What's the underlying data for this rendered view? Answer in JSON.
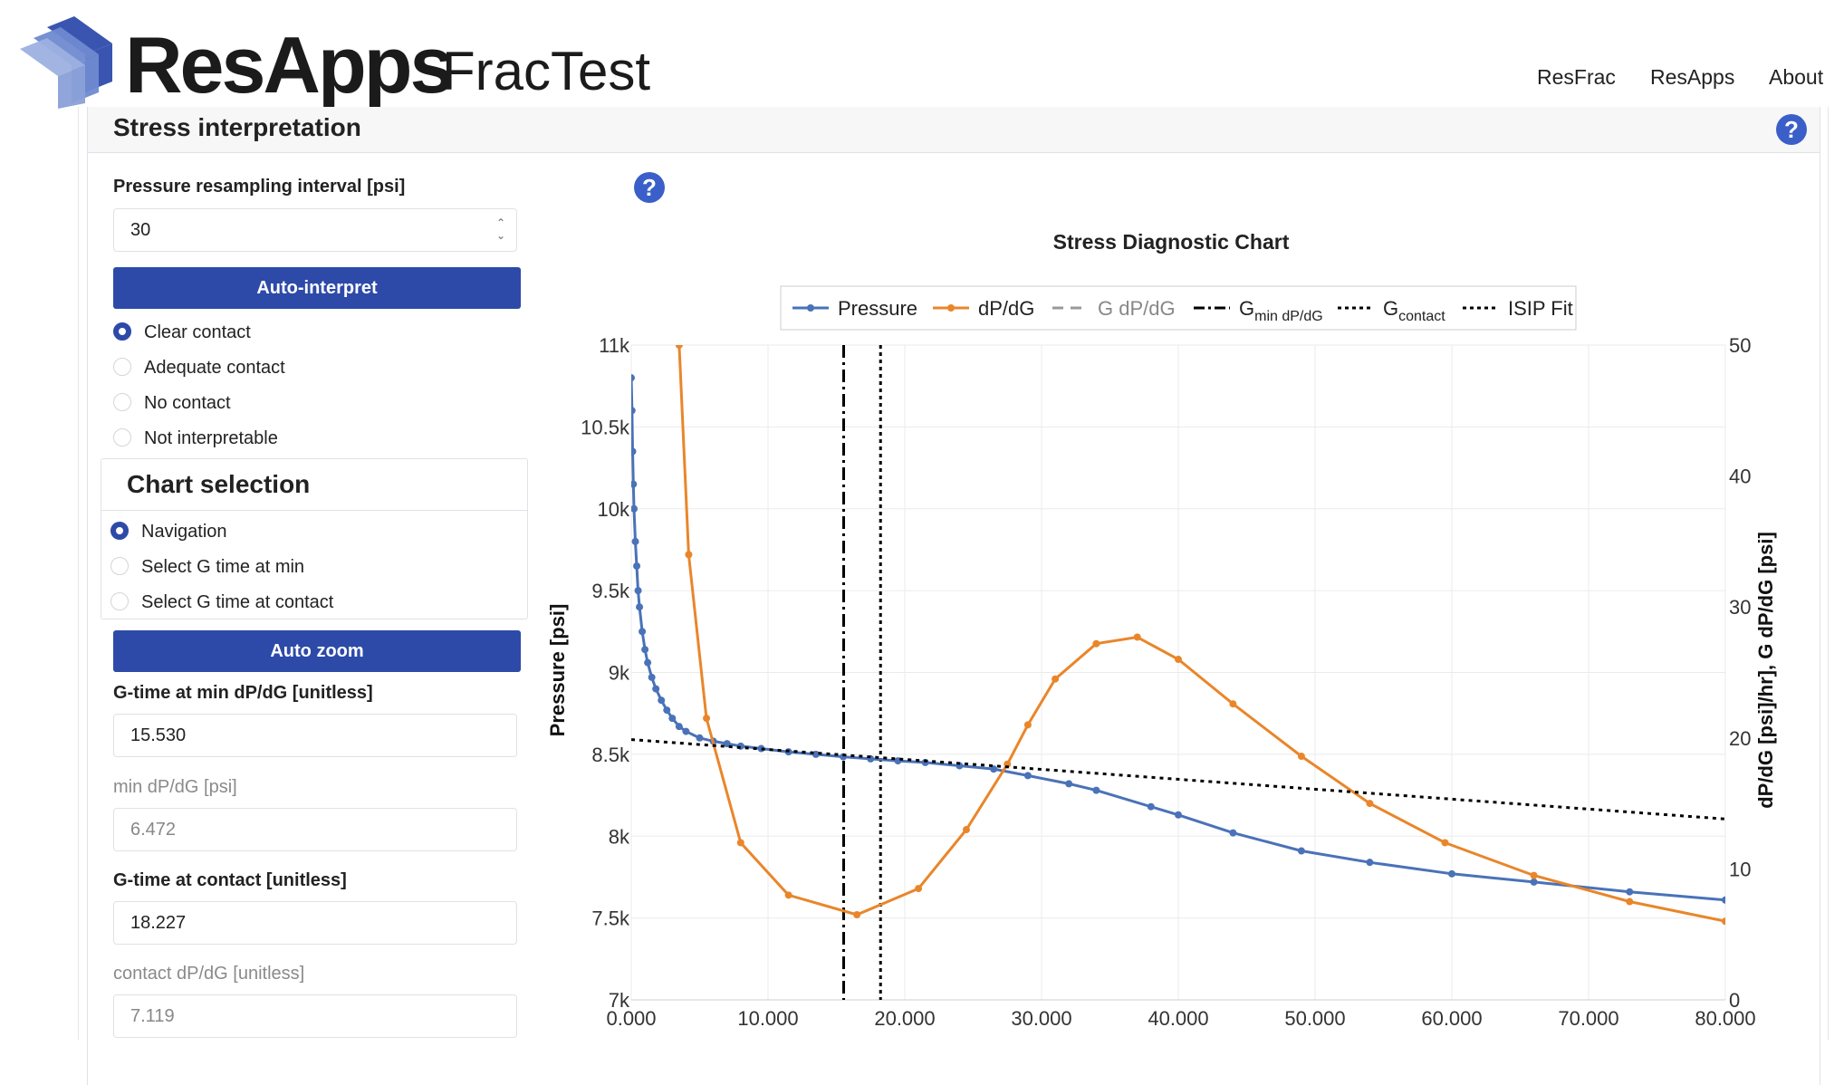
{
  "header": {
    "brand": "ResApps",
    "app_name": "FracTest",
    "nav": [
      "ResFrac",
      "ResApps",
      "About"
    ],
    "brand_colors": [
      "#3a55b0",
      "#6f8ad0",
      "#9cb0e0"
    ]
  },
  "card": {
    "title": "Stress interpretation"
  },
  "controls": {
    "resampling_label": "Pressure resampling interval [psi]",
    "resampling_value": "30",
    "auto_interpret_label": "Auto-interpret",
    "contact_options": [
      "Clear contact",
      "Adequate contact",
      "No contact",
      "Not interpretable"
    ],
    "contact_selected": "Clear contact",
    "chart_selection_title": "Chart selection",
    "chart_selection_options": [
      "Navigation",
      "Select G time at min",
      "Select G time at contact"
    ],
    "chart_selection_selected": "Navigation",
    "auto_zoom_label": "Auto zoom",
    "gmin_label": "G-time at min dP/dG [unitless]",
    "gmin_value": "15.530",
    "min_dpdg_label": "min dP/dG [psi]",
    "min_dpdg_value": "6.472",
    "gcontact_label": "G-time at contact [unitless]",
    "gcontact_value": "18.227",
    "contact_dpdg_label": "contact dP/dG [unitless]",
    "contact_dpdg_value": "7.119",
    "accent_color": "#2d4aa8"
  },
  "chart_data": {
    "type": "line",
    "title": "Stress Diagnostic Chart",
    "xlabel": "",
    "ylabel": "Pressure [psi]",
    "y2label": "dP/dG [psi]/hr], G dP/dG [psi]",
    "xlim": [
      0,
      80
    ],
    "ylim": [
      7000,
      11000
    ],
    "y2lim": [
      0,
      50
    ],
    "x_ticks": [
      "0.000",
      "10.000",
      "20.000",
      "30.000",
      "40.000",
      "50.000",
      "60.000",
      "70.000",
      "80.000"
    ],
    "y_ticks": [
      "7k",
      "7.5k",
      "8k",
      "8.5k",
      "9k",
      "9.5k",
      "10k",
      "10.5k",
      "11k"
    ],
    "y2_ticks": [
      "0",
      "10",
      "20",
      "30",
      "40",
      "50"
    ],
    "legend_position": "top-center",
    "legend": [
      {
        "name": "Pressure",
        "sub": "",
        "color": "#4a72b8",
        "style": "line-marker"
      },
      {
        "name": "dP/dG",
        "sub": "",
        "color": "#e9862a",
        "style": "line-marker"
      },
      {
        "name": "G dP/dG",
        "sub": "",
        "color": "#999999",
        "style": "dash"
      },
      {
        "name": "G",
        "sub": "min dP/dG",
        "color": "#000000",
        "style": "dashdot"
      },
      {
        "name": "G",
        "sub": "contact",
        "color": "#000000",
        "style": "dot"
      },
      {
        "name": "ISIP Fit",
        "sub": "",
        "color": "#000000",
        "style": "dot"
      }
    ],
    "series": [
      {
        "name": "Pressure",
        "color": "#4a72b8",
        "axis": "y",
        "x": [
          0,
          0.05,
          0.1,
          0.15,
          0.2,
          0.3,
          0.4,
          0.5,
          0.6,
          0.8,
          1.0,
          1.2,
          1.5,
          1.8,
          2.2,
          2.6,
          3.0,
          3.5,
          4.0,
          5.0,
          6.0,
          7.0,
          8.0,
          9.5,
          11.5,
          13.5,
          15.5,
          17.5,
          19.5,
          21.5,
          24.0,
          26.5,
          29.0,
          32.0,
          34.0,
          38.0,
          40.0,
          44.0,
          49.0,
          54.0,
          60.0,
          66.0,
          73.0,
          80.0
        ],
        "y": [
          10800,
          10600,
          10350,
          10150,
          10000,
          9800,
          9650,
          9500,
          9400,
          9250,
          9140,
          9060,
          8970,
          8900,
          8830,
          8770,
          8720,
          8670,
          8640,
          8600,
          8580,
          8565,
          8550,
          8535,
          8515,
          8500,
          8485,
          8472,
          8460,
          8450,
          8430,
          8410,
          8370,
          8320,
          8280,
          8180,
          8130,
          8020,
          7910,
          7840,
          7770,
          7720,
          7660,
          7610
        ]
      },
      {
        "name": "dP/dG",
        "color": "#e9862a",
        "axis": "y2",
        "x": [
          3.5,
          4.2,
          5.5,
          8.0,
          11.5,
          16.5,
          21.0,
          24.5,
          27.5,
          29.0,
          31.0,
          34.0,
          37.0,
          40.0,
          44.0,
          49.0,
          54.0,
          59.5,
          66.0,
          73.0,
          80.0
        ],
        "y": [
          50,
          34,
          21.5,
          12,
          8,
          6.5,
          8.5,
          13,
          18,
          21,
          24.5,
          27.2,
          27.7,
          26.0,
          22.6,
          18.6,
          15.0,
          12.0,
          9.5,
          7.5,
          6.0
        ]
      },
      {
        "name": "ISIP Fit",
        "color": "#000000",
        "axis": "y",
        "x": [
          0,
          80
        ],
        "y": [
          8590,
          8105
        ]
      }
    ],
    "vertical_lines": [
      {
        "name": "G min dP/dG",
        "x": 15.53,
        "style": "dashdot"
      },
      {
        "name": "G contact",
        "x": 18.227,
        "style": "dot"
      }
    ]
  }
}
